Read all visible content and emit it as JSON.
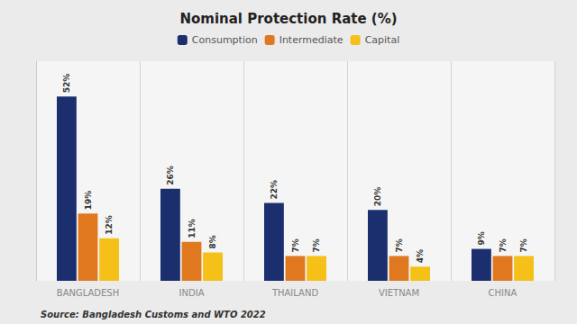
{
  "chart_data": {
    "type": "bar",
    "title": "Nominal Protection Rate (%)",
    "categories": [
      "BANGLADESH",
      "INDIA",
      "THAILAND",
      "VIETNAM",
      "CHINA"
    ],
    "series": [
      {
        "name": "Consumption",
        "color": "#1b2f6e",
        "values": [
          52,
          26,
          22,
          20,
          9
        ],
        "value_labels": [
          "52%",
          "26%",
          "22%",
          "20%",
          "9%"
        ]
      },
      {
        "name": "Intermediate",
        "color": "#e07820",
        "values": [
          19,
          11,
          7,
          7,
          7
        ],
        "value_labels": [
          "19%",
          "11%",
          "7%",
          "7%",
          "7%"
        ]
      },
      {
        "name": "Capital",
        "color": "#f5c018",
        "values": [
          12,
          8,
          7,
          4,
          7
        ],
        "value_labels": [
          "12%",
          "8%",
          "7%",
          "4%",
          "7%"
        ]
      }
    ],
    "ylim": [
      0,
      62
    ],
    "grid": false,
    "legend": "top",
    "data_labels": true,
    "tick_labels": "x",
    "annotations": [
      "Source: Bangladesh Customs and WTO 2022"
    ]
  }
}
